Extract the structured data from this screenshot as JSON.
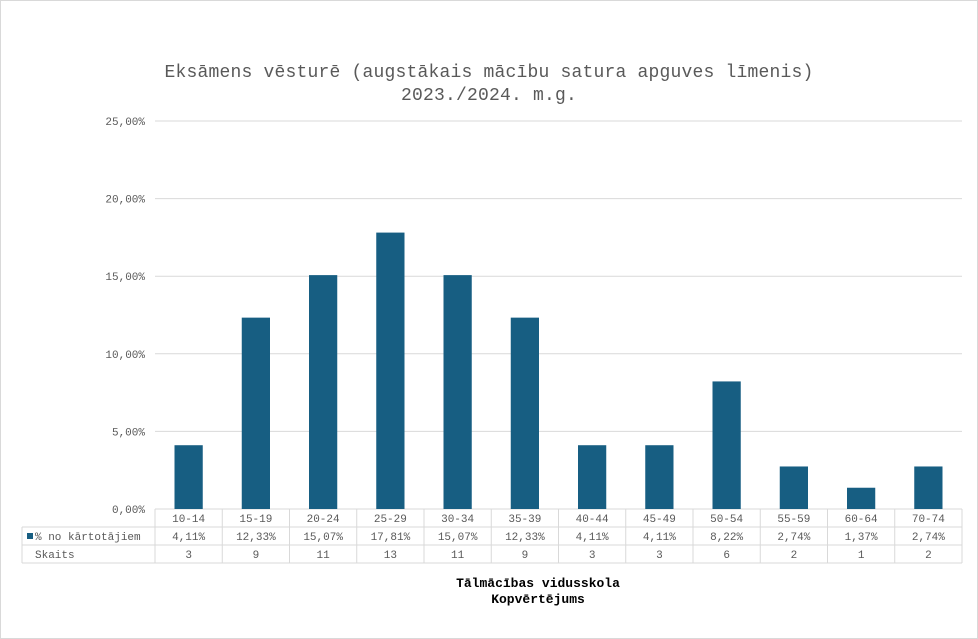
{
  "chart_data": {
    "type": "bar",
    "title": "Eksāmens vēsturē (augstākais mācību satura apguves līmenis)",
    "subtitle": "2023./2024. m.g.",
    "categories": [
      "10-14",
      "15-19",
      "20-24",
      "25-29",
      "30-34",
      "35-39",
      "40-44",
      "45-49",
      "50-54",
      "55-59",
      "60-64",
      "70-74"
    ],
    "series": [
      {
        "name": "% no kārtotājiem",
        "color": "#175e82",
        "values": [
          4.11,
          12.33,
          15.07,
          17.81,
          15.07,
          12.33,
          4.11,
          4.11,
          8.22,
          2.74,
          1.37,
          2.74
        ],
        "labels": [
          "4,11%",
          "12,33%",
          "15,07%",
          "17,81%",
          "15,07%",
          "12,33%",
          "4,11%",
          "4,11%",
          "8,22%",
          "2,74%",
          "1,37%",
          "2,74%"
        ]
      }
    ],
    "table_rows": [
      {
        "name": "Skaits",
        "values": [
          "3",
          "9",
          "11",
          "13",
          "11",
          "9",
          "3",
          "3",
          "6",
          "2",
          "1",
          "2"
        ]
      }
    ],
    "ylim": [
      0,
      25
    ],
    "yticks": [
      0,
      5,
      10,
      15,
      20,
      25
    ],
    "ytick_labels": [
      "0,00%",
      "5,00%",
      "10,00%",
      "15,00%",
      "20,00%",
      "25,00%"
    ],
    "grid": true,
    "legend": "data-table",
    "xlabel_lines": [
      "Tālmācības vidusskola",
      "Kopvērtējums"
    ],
    "ylabel": ""
  }
}
